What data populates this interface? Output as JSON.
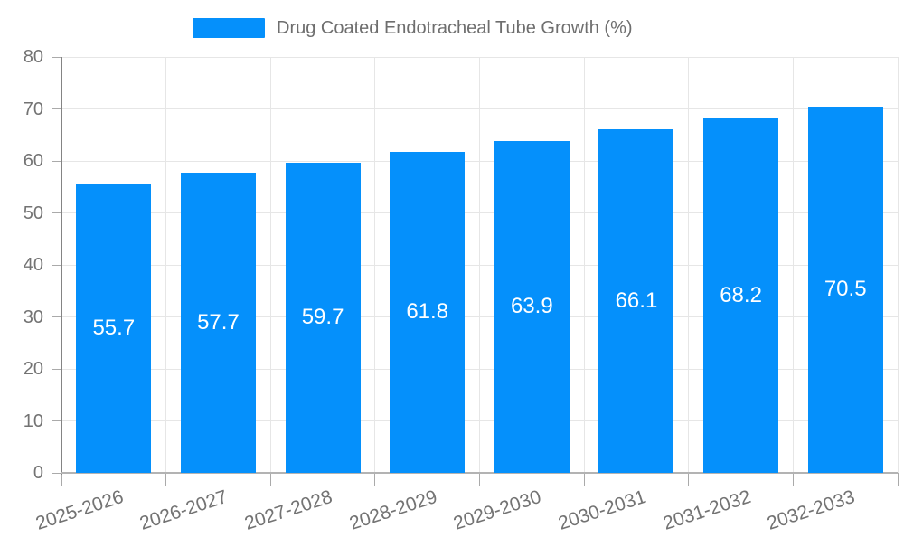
{
  "chart_data": {
    "type": "bar",
    "title": "Drug Coated Endotracheal Tube Growth (%)",
    "categories": [
      "2025-2026",
      "2026-2027",
      "2027-2028",
      "2028-2029",
      "2029-2030",
      "2030-2031",
      "2031-2032",
      "2032-2033"
    ],
    "values": [
      55.7,
      57.7,
      59.7,
      61.8,
      63.9,
      66.1,
      68.2,
      70.5
    ],
    "value_labels": [
      "55.7",
      "57.7",
      "59.7",
      "61.8",
      "63.9",
      "66.1",
      "68.2",
      "70.5"
    ],
    "xlabel": "",
    "ylabel": "",
    "ylim": [
      0,
      80
    ],
    "yticks": [
      0,
      10,
      20,
      30,
      40,
      50,
      60,
      70,
      80
    ],
    "grid": "on",
    "legend_position": "top",
    "value_label_position": "inside-center",
    "x_label_rotation_deg": -18
  },
  "colors": {
    "bar": "#0590fb",
    "value_label": "#ffffff",
    "axis_text": "#737373",
    "legend_text": "#6e6e6e",
    "grid_line": "#e6e6e6",
    "x_axis_line": "#b3b3b3",
    "y_axis_line": "#848484",
    "tick": "#aaaaaa",
    "background": "#ffffff"
  }
}
